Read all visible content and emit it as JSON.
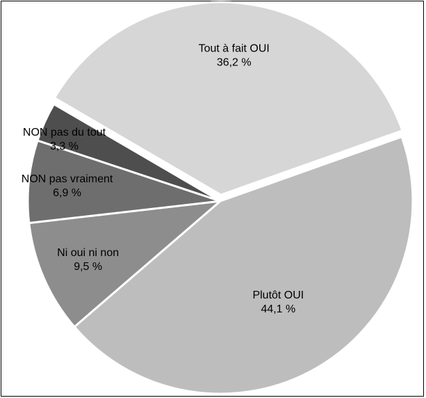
{
  "chart_data": {
    "type": "pie",
    "title": "",
    "slices": [
      {
        "label": "Tout à fait OUI",
        "value": 36.2,
        "value_label": "36,2 %",
        "color": "#d6d6d6"
      },
      {
        "label": "Plutôt OUI",
        "value": 44.1,
        "value_label": "44,1 %",
        "color": "#bdbdbd"
      },
      {
        "label": "Ni oui ni non",
        "value": 9.5,
        "value_label": "9,5 %",
        "color": "#8d8d8d"
      },
      {
        "label": "NON pas vraiment",
        "value": 6.9,
        "value_label": "6,9 %",
        "color": "#6e6e6e"
      },
      {
        "label": "NON pas du tout",
        "value": 3.3,
        "value_label": "3,3 %",
        "color": "#4e4e4e"
      }
    ],
    "start_angle_deg": -59.8,
    "exploded_slice": "Tout à fait OUI",
    "legend": "none"
  }
}
